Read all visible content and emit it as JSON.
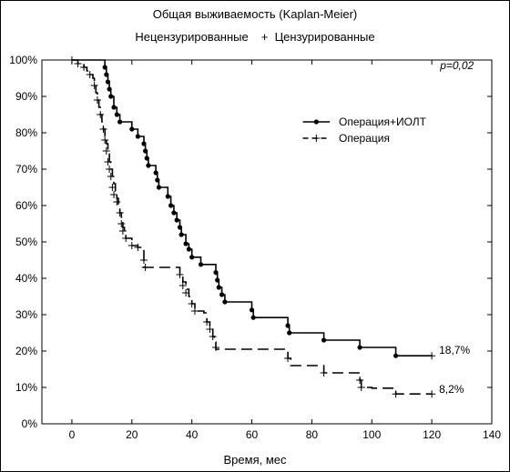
{
  "chart_data": {
    "type": "line",
    "title": "Общая выживаемость (Kaplan-Meier)",
    "legend_top": {
      "uncensored": "Нецензурированные",
      "censored_symbol": "+",
      "censored": "Цензурированные"
    },
    "xlabel": "Время, мес",
    "ylabel": "",
    "xlim": [
      -10,
      140
    ],
    "ylim": [
      0,
      100
    ],
    "x_ticks": [
      0,
      20,
      40,
      60,
      80,
      100,
      120,
      140
    ],
    "y_ticks": [
      0,
      10,
      20,
      30,
      40,
      50,
      60,
      70,
      80,
      90,
      100
    ],
    "y_tick_labels": [
      "0%",
      "10%",
      "20%",
      "30%",
      "40%",
      "50%",
      "60%",
      "70%",
      "80%",
      "90%",
      "100%"
    ],
    "p_value": "p=0,02",
    "grid": false,
    "legend_position": "top-right",
    "series": [
      {
        "name": "Операция+ИОЛТ",
        "style": "solid",
        "color": "#000000",
        "steps": [
          [
            0,
            100
          ],
          [
            11,
            98
          ],
          [
            11.5,
            96
          ],
          [
            12,
            94
          ],
          [
            12.5,
            92
          ],
          [
            13,
            90
          ],
          [
            14,
            87
          ],
          [
            15,
            85
          ],
          [
            16,
            83
          ],
          [
            20,
            81
          ],
          [
            22,
            79
          ],
          [
            24,
            77
          ],
          [
            24.5,
            75
          ],
          [
            25,
            73
          ],
          [
            25.5,
            71
          ],
          [
            28,
            69
          ],
          [
            28.5,
            67
          ],
          [
            29,
            65
          ],
          [
            32,
            62.5
          ],
          [
            33,
            60
          ],
          [
            34,
            58
          ],
          [
            35,
            56
          ],
          [
            36,
            54
          ],
          [
            36.5,
            52
          ],
          [
            38,
            49.5
          ],
          [
            39,
            48
          ],
          [
            40,
            45.8
          ],
          [
            43,
            43.8
          ],
          [
            48,
            41.6
          ],
          [
            48.5,
            39.5
          ],
          [
            49,
            37.5
          ],
          [
            50,
            35.5
          ],
          [
            51,
            33.5
          ],
          [
            60,
            31.3
          ],
          [
            60.5,
            29.2
          ],
          [
            72,
            27
          ],
          [
            72.5,
            25
          ],
          [
            84,
            23
          ],
          [
            96,
            21
          ],
          [
            108,
            18.7
          ],
          [
            120,
            18.7
          ]
        ],
        "events": [
          [
            11,
            98
          ],
          [
            11.5,
            96
          ],
          [
            12,
            94
          ],
          [
            12.5,
            92
          ],
          [
            13,
            90
          ],
          [
            14,
            87
          ],
          [
            15,
            85
          ],
          [
            16,
            83
          ],
          [
            20,
            81
          ],
          [
            22,
            79
          ],
          [
            24,
            77
          ],
          [
            24.5,
            75
          ],
          [
            25,
            73
          ],
          [
            25.5,
            71
          ],
          [
            28,
            69
          ],
          [
            28.5,
            67
          ],
          [
            29,
            65
          ],
          [
            32,
            62.5
          ],
          [
            33,
            60
          ],
          [
            34,
            58
          ],
          [
            35,
            56
          ],
          [
            36,
            54
          ],
          [
            36.5,
            52
          ],
          [
            38,
            49.5
          ],
          [
            39,
            48
          ],
          [
            40,
            45.8
          ],
          [
            43,
            43.8
          ],
          [
            48,
            41.6
          ],
          [
            48.5,
            39.5
          ],
          [
            49,
            37.5
          ],
          [
            50,
            35.5
          ],
          [
            51,
            33.5
          ],
          [
            60,
            31.3
          ],
          [
            60.5,
            29.2
          ],
          [
            72,
            27
          ],
          [
            72.5,
            25
          ],
          [
            84,
            23
          ],
          [
            96,
            21
          ],
          [
            108,
            18.7
          ]
        ],
        "censored": [
          [
            120,
            18.7
          ]
        ],
        "end_label": "18,7%"
      },
      {
        "name": "Операция",
        "style": "dashed",
        "color": "#000000",
        "steps": [
          [
            0,
            100
          ],
          [
            2,
            99
          ],
          [
            4,
            98
          ],
          [
            5,
            97
          ],
          [
            6,
            96
          ],
          [
            7,
            95
          ],
          [
            7.5,
            93
          ],
          [
            8,
            91
          ],
          [
            8.5,
            89
          ],
          [
            9,
            87
          ],
          [
            9.5,
            85
          ],
          [
            10,
            83
          ],
          [
            10.5,
            81
          ],
          [
            11,
            79
          ],
          [
            11.5,
            77
          ],
          [
            12,
            75
          ],
          [
            12.5,
            72
          ],
          [
            13,
            70
          ],
          [
            13.5,
            68
          ],
          [
            14,
            66
          ],
          [
            14.5,
            64
          ],
          [
            15,
            62
          ],
          [
            15.5,
            60
          ],
          [
            16,
            58
          ],
          [
            16.5,
            56
          ],
          [
            17,
            54
          ],
          [
            17.5,
            52
          ],
          [
            18,
            51
          ],
          [
            20,
            49
          ],
          [
            22,
            48.5
          ],
          [
            24,
            43
          ],
          [
            28,
            43
          ],
          [
            36,
            41
          ],
          [
            37,
            39
          ],
          [
            38,
            37
          ],
          [
            39,
            35
          ],
          [
            40,
            33
          ],
          [
            41,
            31
          ],
          [
            44,
            30.5
          ],
          [
            45,
            28
          ],
          [
            46,
            26
          ],
          [
            47,
            24
          ],
          [
            47.5,
            22.5
          ],
          [
            48,
            20.5
          ],
          [
            72,
            18
          ],
          [
            73,
            16
          ],
          [
            84,
            14
          ],
          [
            96,
            12
          ],
          [
            96.5,
            10
          ],
          [
            100,
            9.8
          ],
          [
            108,
            8.2
          ],
          [
            120,
            8.2
          ]
        ],
        "events": [],
        "censored": [
          [
            0,
            100
          ],
          [
            2,
            99
          ],
          [
            4,
            98
          ],
          [
            6,
            96
          ],
          [
            7.5,
            93
          ],
          [
            8.5,
            89
          ],
          [
            9.5,
            85
          ],
          [
            10.5,
            81
          ],
          [
            11,
            78
          ],
          [
            11.5,
            75
          ],
          [
            12,
            72
          ],
          [
            12.5,
            70
          ],
          [
            13,
            68
          ],
          [
            13.5,
            65
          ],
          [
            14,
            63
          ],
          [
            15,
            61
          ],
          [
            16,
            58
          ],
          [
            16.5,
            55
          ],
          [
            17,
            53
          ],
          [
            18,
            51
          ],
          [
            20,
            49
          ],
          [
            22,
            48.5
          ],
          [
            24,
            45
          ],
          [
            24.5,
            43
          ],
          [
            36,
            41
          ],
          [
            37,
            38
          ],
          [
            38,
            36
          ],
          [
            40,
            33
          ],
          [
            41,
            31
          ],
          [
            45,
            28
          ],
          [
            46,
            26
          ],
          [
            47,
            24
          ],
          [
            48,
            21
          ],
          [
            72,
            18
          ],
          [
            84,
            14
          ],
          [
            96,
            12
          ],
          [
            96.5,
            10
          ],
          [
            108,
            8.2
          ],
          [
            120,
            8.2
          ]
        ],
        "end_label": "8,2%"
      }
    ]
  }
}
